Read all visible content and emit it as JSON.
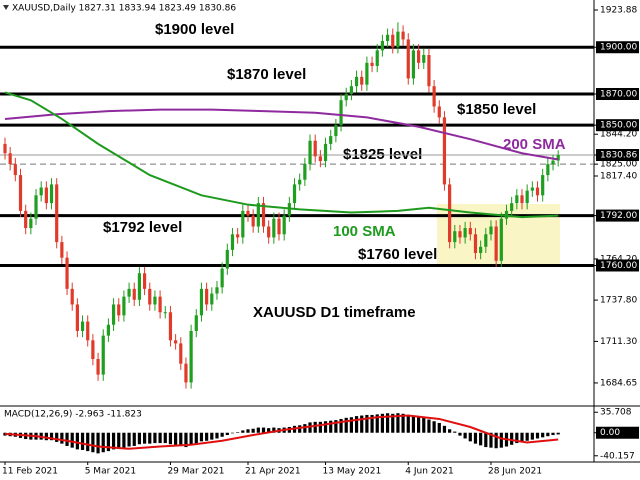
{
  "chart_data": [
    {
      "type": "candlestick",
      "header": "XAUUSD,Daily  1827.31 1833.94 1823.49 1830.86",
      "categories": [
        "11 Feb 2021",
        null,
        null,
        null,
        null,
        null,
        null,
        null,
        null,
        null,
        null,
        null,
        null,
        null,
        null,
        null,
        "5 Mar 2021",
        null,
        null,
        null,
        null,
        null,
        null,
        null,
        null,
        null,
        null,
        null,
        null,
        null,
        null,
        null,
        "29 Mar 2021",
        null,
        null,
        null,
        null,
        null,
        null,
        null,
        null,
        null,
        null,
        null,
        null,
        null,
        null,
        "21 Apr 2021",
        null,
        null,
        null,
        null,
        null,
        null,
        null,
        null,
        null,
        null,
        null,
        null,
        null,
        null,
        "13 May 2021",
        null,
        null,
        null,
        null,
        null,
        null,
        null,
        null,
        null,
        null,
        null,
        null,
        null,
        null,
        null,
        "4 Jun 2021",
        null,
        null,
        null,
        null,
        null,
        null,
        null,
        null,
        null,
        null,
        null,
        null,
        null,
        null,
        null,
        "28 Jun 2021",
        null,
        null,
        null,
        null,
        null,
        null,
        null,
        null,
        null,
        null,
        null,
        null,
        null
      ],
      "open": [
        1838,
        1832,
        1825,
        1818,
        1795,
        1784,
        1790,
        1805,
        1810,
        1800,
        1812,
        1775,
        1765,
        1745,
        1735,
        1718,
        1724,
        1712,
        1700,
        1690,
        1715,
        1722,
        1735,
        1728,
        1740,
        1745,
        1738,
        1755,
        1745,
        1735,
        1740,
        1730,
        1730,
        1712,
        1710,
        1697,
        1685,
        1718,
        1728,
        1745,
        1735,
        1742,
        1746,
        1758,
        1770,
        1780,
        1778,
        1795,
        1792,
        1785,
        1800,
        1785,
        1778,
        1790,
        1780,
        1792,
        1800,
        1812,
        1815,
        1825,
        1840,
        1830,
        1827,
        1838,
        1843,
        1850,
        1866,
        1870,
        1875,
        1881,
        1876,
        1890,
        1888,
        1898,
        1904,
        1908,
        1900,
        1910,
        1905,
        1880,
        1898,
        1890,
        1895,
        1875,
        1862,
        1855,
        1812,
        1775,
        1782,
        1778,
        1784,
        1780,
        1768,
        1772,
        1780,
        1785,
        1763,
        1790,
        1795,
        1800,
        1805,
        1800,
        1808,
        1810,
        1805,
        1818,
        1825,
        1827.31
      ],
      "high": [
        1842,
        1836,
        1829,
        1822,
        1799,
        1794,
        1809,
        1814,
        1814,
        1816,
        1816,
        1779,
        1769,
        1749,
        1739,
        1728,
        1728,
        1716,
        1704,
        1719,
        1726,
        1739,
        1739,
        1744,
        1749,
        1749,
        1759,
        1759,
        1749,
        1744,
        1744,
        1734,
        1734,
        1716,
        1714,
        1701,
        1722,
        1732,
        1749,
        1749,
        1746,
        1750,
        1762,
        1774,
        1784,
        1784,
        1799,
        1799,
        1796,
        1804,
        1804,
        1789,
        1794,
        1794,
        1796,
        1804,
        1816,
        1819,
        1829,
        1844,
        1844,
        1834,
        1842,
        1847,
        1854,
        1870,
        1874,
        1879,
        1885,
        1885,
        1894,
        1894,
        1902,
        1908,
        1912,
        1912,
        1916,
        1914,
        1909,
        1902,
        1902,
        1899,
        1899,
        1879,
        1866,
        1859,
        1816,
        1786,
        1786,
        1788,
        1788,
        1784,
        1776,
        1784,
        1789,
        1789,
        1794,
        1799,
        1804,
        1809,
        1809,
        1812,
        1814,
        1814,
        1822,
        1829,
        1831,
        1833.94
      ],
      "low": [
        1828,
        1821,
        1814,
        1791,
        1780,
        1780,
        1786,
        1801,
        1796,
        1796,
        1771,
        1761,
        1741,
        1731,
        1714,
        1714,
        1708,
        1696,
        1686,
        1686,
        1711,
        1718,
        1724,
        1724,
        1736,
        1734,
        1734,
        1741,
        1731,
        1731,
        1726,
        1726,
        1708,
        1706,
        1693,
        1681,
        1681,
        1714,
        1724,
        1731,
        1731,
        1738,
        1742,
        1754,
        1766,
        1774,
        1774,
        1788,
        1781,
        1781,
        1781,
        1774,
        1774,
        1776,
        1776,
        1788,
        1796,
        1808,
        1811,
        1821,
        1826,
        1823,
        1823,
        1834,
        1839,
        1846,
        1862,
        1866,
        1871,
        1872,
        1872,
        1884,
        1884,
        1894,
        1900,
        1896,
        1896,
        1901,
        1876,
        1876,
        1886,
        1886,
        1871,
        1858,
        1851,
        1808,
        1771,
        1771,
        1774,
        1774,
        1776,
        1764,
        1764,
        1768,
        1776,
        1759,
        1759,
        1786,
        1791,
        1796,
        1796,
        1796,
        1804,
        1801,
        1801,
        1814,
        1821,
        1823.49
      ],
      "close": [
        1832,
        1825,
        1818,
        1795,
        1784,
        1790,
        1805,
        1810,
        1800,
        1812,
        1775,
        1765,
        1745,
        1735,
        1718,
        1724,
        1712,
        1700,
        1690,
        1715,
        1722,
        1735,
        1728,
        1740,
        1745,
        1738,
        1755,
        1745,
        1735,
        1740,
        1730,
        1730,
        1712,
        1710,
        1697,
        1685,
        1718,
        1728,
        1745,
        1735,
        1742,
        1746,
        1758,
        1770,
        1780,
        1778,
        1795,
        1792,
        1785,
        1800,
        1785,
        1778,
        1790,
        1780,
        1792,
        1800,
        1812,
        1815,
        1825,
        1840,
        1830,
        1827,
        1838,
        1843,
        1850,
        1866,
        1870,
        1875,
        1881,
        1876,
        1890,
        1888,
        1898,
        1904,
        1908,
        1900,
        1910,
        1905,
        1880,
        1898,
        1890,
        1895,
        1875,
        1862,
        1855,
        1812,
        1775,
        1782,
        1778,
        1784,
        1780,
        1768,
        1772,
        1780,
        1785,
        1763,
        1790,
        1795,
        1800,
        1805,
        1800,
        1808,
        1810,
        1805,
        1818,
        1825,
        1827.31,
        1830.86
      ],
      "up_color": "#1f9e1f",
      "down_color": "#e03a2a",
      "ylim": [
        1670.5,
        1930.3
      ],
      "yticks": [
        {
          "value": 1923.88,
          "label": "1923.88"
        },
        {
          "value": 1900,
          "label": "1900.00",
          "highlight": true
        },
        {
          "value": 1870,
          "label": "1870.00",
          "highlight": true
        },
        {
          "value": 1850,
          "label": "1850.00",
          "highlight": true
        },
        {
          "value": 1844.2,
          "label": "1844.20"
        },
        {
          "value": 1830.86,
          "label": "1830.86",
          "highlight": true
        },
        {
          "value": 1825,
          "label": "1825.00"
        },
        {
          "value": 1817.4,
          "label": "1817.40"
        },
        {
          "value": 1792,
          "label": "1792.00",
          "highlight": true
        },
        {
          "value": 1764.2,
          "label": "1764.20"
        },
        {
          "value": 1760,
          "label": "1760.00",
          "highlight": true
        },
        {
          "value": 1737.8,
          "label": "1737.80"
        },
        {
          "value": 1711.3,
          "label": "1711.30"
        },
        {
          "value": 1684.65,
          "label": "1684.65"
        }
      ],
      "series": [
        {
          "name": "200 SMA",
          "color": "#8e2a9e",
          "x": [
            0,
            10,
            20,
            30,
            40,
            50,
            60,
            70,
            80,
            90,
            100,
            107
          ],
          "values": [
            1854,
            1857,
            1859,
            1860,
            1860,
            1859,
            1858,
            1855,
            1849,
            1841,
            1832,
            1828
          ]
        },
        {
          "name": "100 SMA",
          "color": "#1e9a1e",
          "x": [
            0,
            5,
            11,
            18,
            28,
            38,
            47,
            57,
            67,
            76,
            82,
            90,
            100,
            107
          ],
          "values": [
            1871,
            1866,
            1854,
            1838,
            1818,
            1805,
            1799,
            1796,
            1794,
            1795,
            1797,
            1794,
            1791,
            1792
          ]
        }
      ],
      "levels": [
        {
          "value": 1900,
          "label": "$1900 level",
          "style": "solid"
        },
        {
          "value": 1870,
          "label": "$1870 level",
          "style": "solid"
        },
        {
          "value": 1850,
          "label": "$1850 level",
          "style": "solid"
        },
        {
          "value": 1825,
          "label": "$1825 level",
          "style": "dashed"
        },
        {
          "value": 1792,
          "label": "$1792 level",
          "style": "solid"
        },
        {
          "value": 1760,
          "label": "$1760 level",
          "style": "solid"
        },
        {
          "value": 1830.86,
          "style": "thin"
        }
      ],
      "annotation": "XAUUSD D1 timeframe"
    },
    {
      "type": "macd",
      "title": "MACD(12,26,9) -2.963 -11.823",
      "values": [
        -5,
        -6,
        -7,
        -9,
        -11,
        -12,
        -12,
        -12,
        -13,
        -13,
        -16,
        -19,
        -23,
        -26,
        -29,
        -30,
        -32,
        -34,
        -36,
        -34,
        -32,
        -29,
        -28,
        -26,
        -24,
        -23,
        -20,
        -19,
        -19,
        -18,
        -18,
        -18,
        -20,
        -21,
        -23,
        -25,
        -22,
        -19,
        -15,
        -14,
        -12,
        -10,
        -7,
        -4,
        -1,
        1,
        4,
        6,
        7,
        9,
        9,
        8,
        9,
        8,
        9,
        10,
        12,
        13,
        15,
        18,
        19,
        19,
        20,
        21,
        22,
        24,
        26,
        27,
        29,
        30,
        31,
        31,
        32,
        33,
        34,
        33,
        34,
        33,
        30,
        29,
        27,
        26,
        23,
        20,
        17,
        12,
        6,
        2,
        -5,
        -10,
        -15,
        -19,
        -22,
        -25,
        -26,
        -27,
        -26,
        -24,
        -21,
        -18,
        -16,
        -14,
        -12,
        -10,
        -8,
        -6,
        -4,
        -2.963
      ],
      "color": "#000000",
      "signal": {
        "color": "#e01010",
        "x": [
          0,
          6,
          12,
          18,
          24,
          30,
          36,
          42,
          48,
          54,
          60,
          66,
          72,
          78,
          84,
          90,
          96,
          101,
          107
        ],
        "values": [
          -2,
          -6,
          -14,
          -24,
          -28,
          -24,
          -21,
          -14,
          -4,
          5,
          12,
          20,
          27,
          30,
          24,
          10,
          -10,
          -17,
          -11.823
        ]
      },
      "ylim": [
        -51,
        46.6
      ],
      "yticks": [
        35.708,
        {
          "value": 0,
          "label": "0.00",
          "highlight": true
        },
        -40.157
      ]
    }
  ]
}
